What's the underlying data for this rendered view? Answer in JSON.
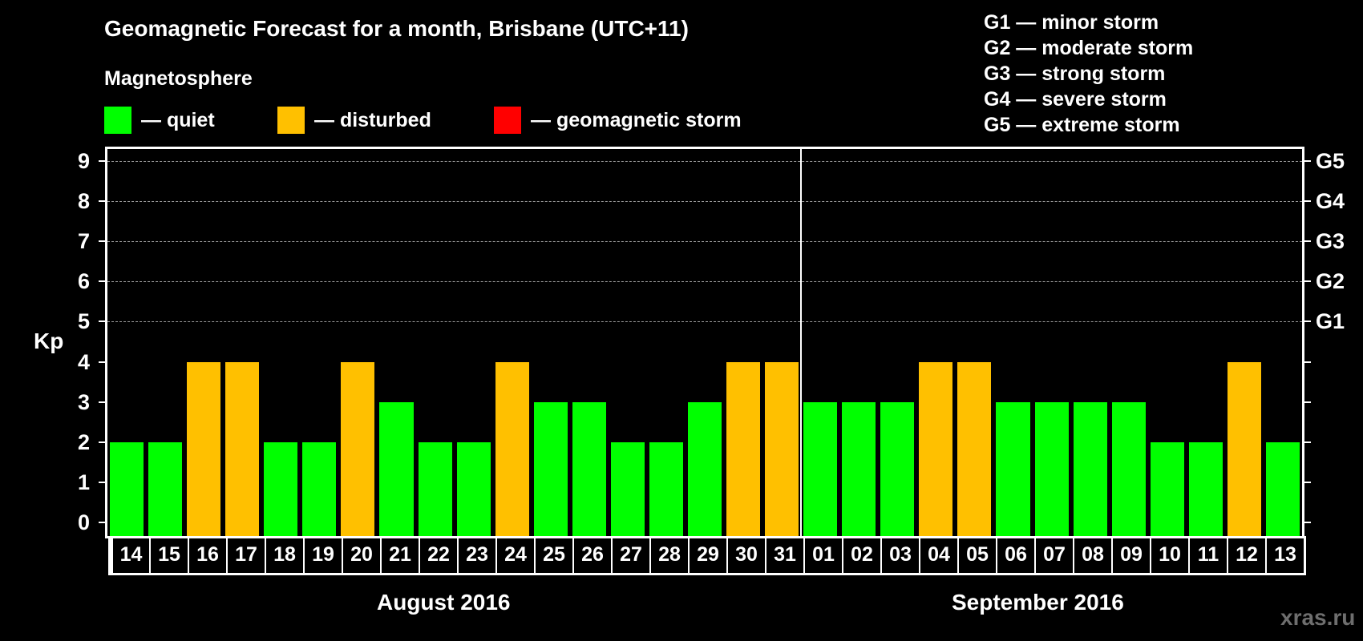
{
  "title": "Geomagnetic Forecast for a month, Brisbane (UTC+11)",
  "subtitle": "Magnetosphere",
  "legend": [
    {
      "label": "— quiet",
      "color": "#00ff00"
    },
    {
      "label": "— disturbed",
      "color": "#ffc000"
    },
    {
      "label": "— geomagnetic storm",
      "color": "#ff0000"
    }
  ],
  "g_legend": [
    "G1 — minor storm",
    "G2 — moderate storm",
    "G3 — strong storm",
    "G4 — severe storm",
    "G5 — extreme storm"
  ],
  "y_axis_label": "Kp",
  "y_ticks": [
    "0",
    "1",
    "2",
    "3",
    "4",
    "5",
    "6",
    "7",
    "8",
    "9"
  ],
  "g_ticks": [
    {
      "kp": 5,
      "label": "G1"
    },
    {
      "kp": 6,
      "label": "G2"
    },
    {
      "kp": 7,
      "label": "G3"
    },
    {
      "kp": 8,
      "label": "G4"
    },
    {
      "kp": 9,
      "label": "G5"
    }
  ],
  "months": [
    {
      "label": "August 2016"
    },
    {
      "label": "September 2016"
    }
  ],
  "watermark": "xras.ru",
  "colors": {
    "quiet": "#00ff00",
    "disturbed": "#ffc000",
    "storm": "#ff0000",
    "grid": "#9a9a9a",
    "background": "#000000"
  },
  "chart_data": {
    "type": "bar",
    "title": "Geomagnetic Forecast for a month, Brisbane (UTC+11)",
    "xlabel": "",
    "ylabel": "Kp",
    "ylim": [
      0,
      9
    ],
    "grid": "dashed horizontal lines at Kp 5-9",
    "secondary_y_labels": {
      "5": "G1",
      "6": "G2",
      "7": "G3",
      "8": "G4",
      "9": "G5"
    },
    "legend": [
      "quiet",
      "disturbed",
      "geomagnetic storm"
    ],
    "x_groups": [
      {
        "label": "August 2016",
        "days": [
          "14",
          "15",
          "16",
          "17",
          "18",
          "19",
          "20",
          "21",
          "22",
          "23",
          "24",
          "25",
          "26",
          "27",
          "28",
          "29",
          "30",
          "31"
        ]
      },
      {
        "label": "September 2016",
        "days": [
          "01",
          "02",
          "03",
          "04",
          "05",
          "06",
          "07",
          "08",
          "09",
          "10",
          "11",
          "12",
          "13"
        ]
      }
    ],
    "categories": [
      "14",
      "15",
      "16",
      "17",
      "18",
      "19",
      "20",
      "21",
      "22",
      "23",
      "24",
      "25",
      "26",
      "27",
      "28",
      "29",
      "30",
      "31",
      "01",
      "02",
      "03",
      "04",
      "05",
      "06",
      "07",
      "08",
      "09",
      "10",
      "11",
      "12",
      "13"
    ],
    "values": [
      2,
      2,
      4,
      4,
      2,
      2,
      4,
      3,
      2,
      2,
      4,
      3,
      3,
      2,
      2,
      3,
      4,
      4,
      3,
      3,
      3,
      4,
      4,
      3,
      3,
      3,
      3,
      2,
      2,
      4,
      2
    ],
    "status": [
      "quiet",
      "quiet",
      "disturbed",
      "disturbed",
      "quiet",
      "quiet",
      "disturbed",
      "quiet",
      "quiet",
      "quiet",
      "disturbed",
      "quiet",
      "quiet",
      "quiet",
      "quiet",
      "quiet",
      "disturbed",
      "disturbed",
      "quiet",
      "quiet",
      "quiet",
      "disturbed",
      "disturbed",
      "quiet",
      "quiet",
      "quiet",
      "quiet",
      "quiet",
      "quiet",
      "disturbed",
      "quiet"
    ]
  }
}
